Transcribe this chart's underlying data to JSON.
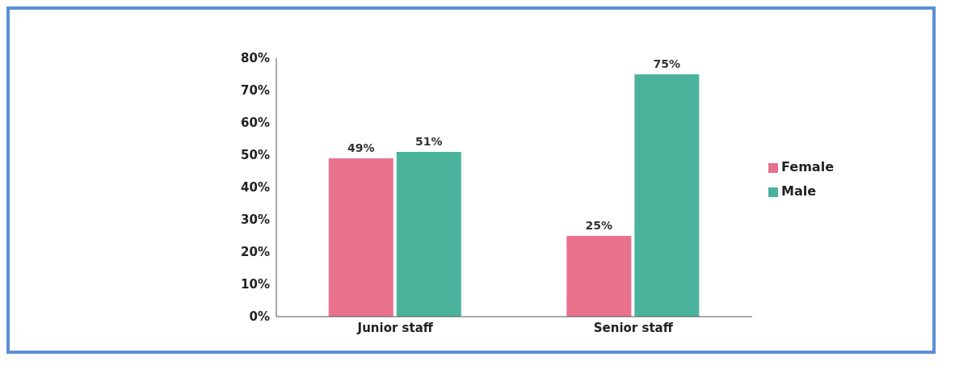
{
  "chart_data": {
    "type": "bar",
    "categories": [
      "Junior staff",
      "Senior staff"
    ],
    "series": [
      {
        "name": "Female",
        "color": "#e8728c",
        "values": [
          49,
          25
        ],
        "value_labels": [
          "49%",
          "25%"
        ]
      },
      {
        "name": "Male",
        "color": "#4bb39c",
        "values": [
          51,
          75
        ],
        "value_labels": [
          "51%",
          "75%"
        ]
      }
    ],
    "ylim": [
      0,
      80
    ],
    "yticks": [
      {
        "value": 0,
        "label": "0%"
      },
      {
        "value": 10,
        "label": "10%"
      },
      {
        "value": 20,
        "label": "20%"
      },
      {
        "value": 30,
        "label": "30%"
      },
      {
        "value": 40,
        "label": "40%"
      },
      {
        "value": 50,
        "label": "50%"
      },
      {
        "value": 60,
        "label": "60%"
      },
      {
        "value": 70,
        "label": "70%"
      },
      {
        "value": 80,
        "label": "80%"
      }
    ],
    "grid": false,
    "legend": "right"
  }
}
